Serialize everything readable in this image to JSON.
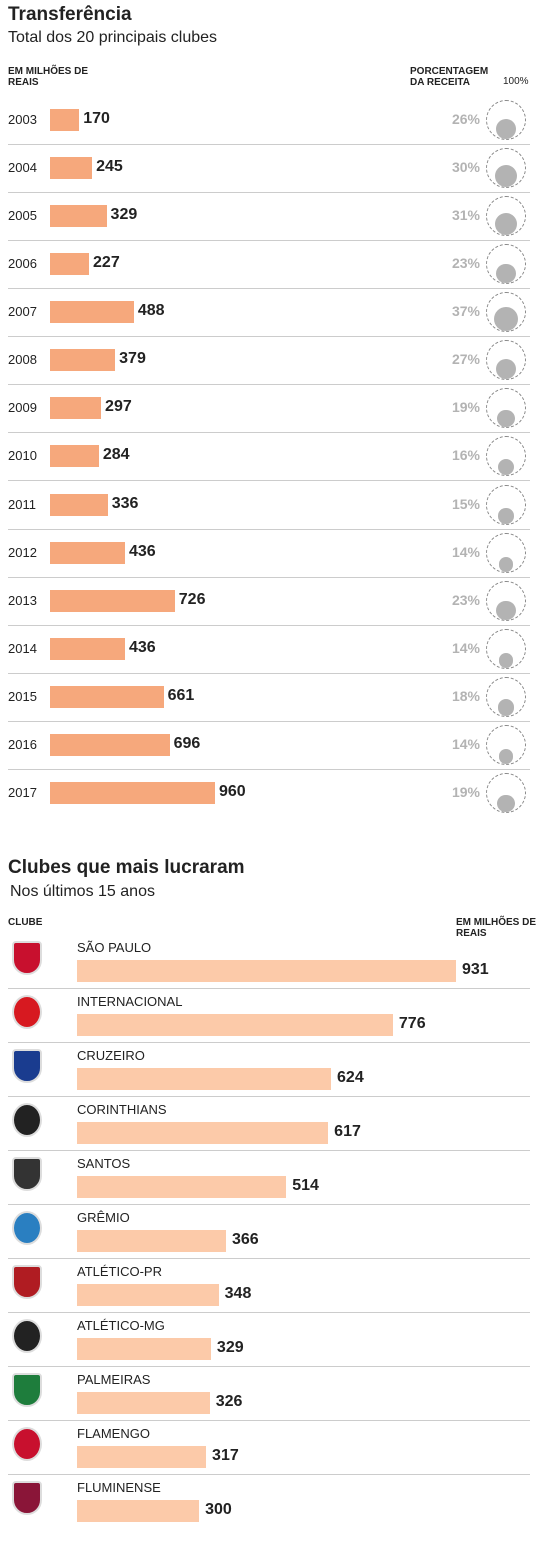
{
  "chart_data": [
    {
      "type": "bar",
      "title": "Transferência",
      "subtitle": "Total dos 20 principais clubes",
      "categories": [
        "2003",
        "2004",
        "2005",
        "2006",
        "2007",
        "2008",
        "2009",
        "2010",
        "2011",
        "2012",
        "2013",
        "2014",
        "2015",
        "2016",
        "2017"
      ],
      "series": [
        {
          "name": "EM MILHÕES DE REAIS",
          "color": "#f6a87c",
          "values": [
            170,
            245,
            329,
            227,
            488,
            379,
            297,
            284,
            336,
            436,
            726,
            436,
            661,
            696,
            960
          ]
        },
        {
          "name": "PORCENTAGEM DA RECEITA",
          "color": "#b3b3b3",
          "values": [
            26,
            30,
            31,
            23,
            37,
            27,
            19,
            16,
            15,
            14,
            23,
            14,
            18,
            14,
            19
          ],
          "value_labels": [
            "26%",
            "30%",
            "31%",
            "23%",
            "37%",
            "27%",
            "19%",
            "16%",
            "15%",
            "14%",
            "23%",
            "14%",
            "18%",
            "14%",
            "19%"
          ]
        }
      ],
      "share_full_label": "100%"
    },
    {
      "type": "hbar",
      "title": "Clubes que mais lucraram",
      "subtitle": "Nos últimos 15 anos",
      "category_label": "CLUBE",
      "value_label": "EM MILHÕES DE REAIS",
      "color": "#fccaa9",
      "categories": [
        "SÃO PAULO",
        "INTERNACIONAL",
        "CRUZEIRO",
        "CORINTHIANS",
        "SANTOS",
        "GRÊMIO",
        "ATLÉTICO-PR",
        "ATLÉTICO-MG",
        "PALMEIRAS",
        "FLAMENGO",
        "FLUMINENSE"
      ],
      "values": [
        931,
        776,
        624,
        617,
        514,
        366,
        348,
        329,
        326,
        317,
        300
      ]
    }
  ]
}
